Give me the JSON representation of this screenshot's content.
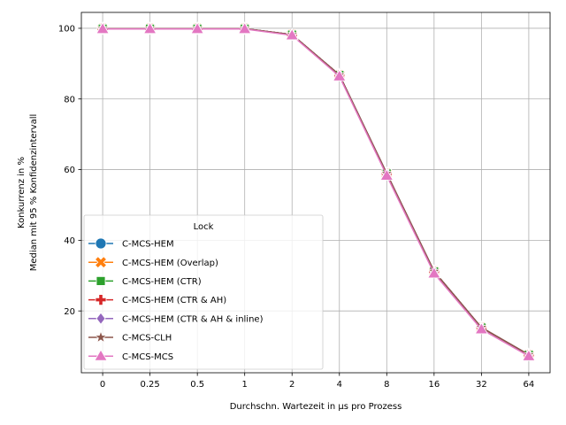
{
  "chart_data": {
    "type": "line",
    "categories": [
      "0",
      "0.25",
      "0.5",
      "1",
      "2",
      "4",
      "8",
      "16",
      "32",
      "64"
    ],
    "xlabel": "Durchschn. Wartezeit in µs pro Prozess",
    "ylabel_line1": "Konkurrenz in %",
    "ylabel_line2": "Median mit 95 % Konfidenzintervall",
    "ylim": [
      2.5,
      104.5
    ],
    "yticks": [
      20,
      40,
      60,
      80,
      100
    ],
    "grid": true,
    "legend": {
      "title": "Lock",
      "placement": "lower-left"
    },
    "series": [
      {
        "name": "C-MCS-HEM",
        "color": "#1f77b4",
        "marker": "circle",
        "values": [
          99.9,
          99.9,
          99.9,
          99.9,
          98.2,
          86.8,
          58.9,
          31.2,
          15.3,
          7.6
        ]
      },
      {
        "name": "C-MCS-HEM (Overlap)",
        "color": "#ff7f0e",
        "marker": "x-filled",
        "values": [
          99.9,
          99.9,
          99.9,
          99.9,
          98.2,
          86.8,
          58.9,
          31.2,
          15.3,
          7.6
        ]
      },
      {
        "name": "C-MCS-HEM (CTR)",
        "color": "#2ca02c",
        "marker": "square",
        "values": [
          99.9,
          99.9,
          99.9,
          99.9,
          98.2,
          86.8,
          58.9,
          31.2,
          15.3,
          7.6
        ]
      },
      {
        "name": "C-MCS-HEM (CTR & AH)",
        "color": "#d62728",
        "marker": "plus-filled",
        "values": [
          99.9,
          99.9,
          99.9,
          99.9,
          98.2,
          86.8,
          58.9,
          31.2,
          15.3,
          7.6
        ]
      },
      {
        "name": "C-MCS-HEM (CTR & AH & inline)",
        "color": "#9467bd",
        "marker": "diamond",
        "values": [
          99.9,
          99.9,
          99.9,
          99.9,
          98.2,
          86.8,
          58.9,
          31.2,
          15.3,
          7.6
        ]
      },
      {
        "name": "C-MCS-CLH",
        "color": "#8c564b",
        "marker": "star",
        "values": [
          99.9,
          99.9,
          99.9,
          99.9,
          98.2,
          86.8,
          58.9,
          31.2,
          15.3,
          7.6
        ]
      },
      {
        "name": "C-MCS-MCS",
        "color": "#e377c2",
        "marker": "triangle",
        "values": [
          99.8,
          99.8,
          99.8,
          99.8,
          98.0,
          86.4,
          58.3,
          30.6,
          14.8,
          7.2
        ]
      }
    ]
  }
}
